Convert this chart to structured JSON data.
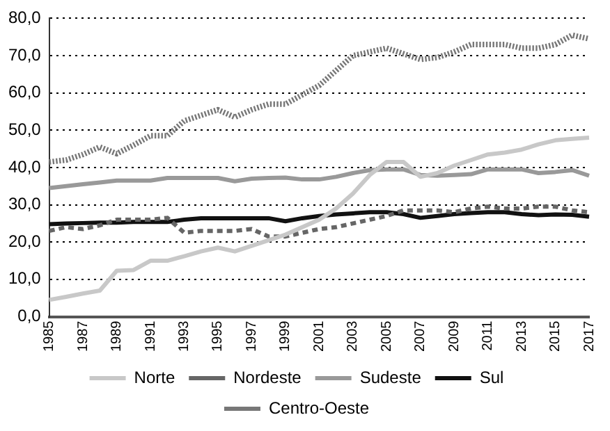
{
  "chart_data": {
    "type": "line",
    "categories": [
      "1985",
      null,
      "1987",
      null,
      "1989",
      null,
      "1991",
      null,
      "1993",
      null,
      "1995",
      null,
      "1997",
      null,
      "1999",
      null,
      "2001",
      null,
      "2003",
      null,
      "2005",
      null,
      "2007",
      null,
      "2009",
      null,
      "2011",
      null,
      "2013",
      null,
      "2015",
      null,
      "2017"
    ],
    "series": [
      {
        "name": "Norte",
        "color": "#c8c8c8",
        "line_style": "solid",
        "values": [
          4.5,
          5.3,
          6.2,
          7,
          12.3,
          12.5,
          15,
          15,
          16.2,
          17.5,
          18.5,
          17.5,
          19,
          20.5,
          22,
          24,
          26,
          29,
          33,
          38,
          41.5,
          41.5,
          37.5,
          38.5,
          40.5,
          42,
          43.5,
          44,
          44.8,
          46.2,
          47.3,
          47.7,
          48
        ]
      },
      {
        "name": "Nordeste",
        "color": "#666666",
        "line_style": "dashed",
        "values": [
          23,
          24,
          23.5,
          24.5,
          26,
          26,
          26,
          26.5,
          22.5,
          23,
          23,
          23,
          23.5,
          21.5,
          21.5,
          22.5,
          23.5,
          24,
          25,
          26,
          27,
          28.5,
          28.5,
          28.5,
          28,
          29,
          29.5,
          29,
          29,
          29.5,
          29.5,
          28.5,
          28
        ]
      },
      {
        "name": "Sudeste",
        "color": "#999999",
        "line_style": "solid",
        "values": [
          34.5,
          35,
          35.5,
          36,
          36.5,
          36.5,
          36.5,
          37.2,
          37.2,
          37.2,
          37.2,
          36.3,
          37,
          37.2,
          37.3,
          36.8,
          36.8,
          37.5,
          38.5,
          39.3,
          39.5,
          39.5,
          38,
          37.8,
          38,
          38.2,
          39.5,
          39.5,
          39.5,
          38.5,
          38.8,
          39.3,
          37.8
        ]
      },
      {
        "name": "Sul",
        "color": "#111111",
        "line_style": "solid",
        "values": [
          24.8,
          25,
          25.1,
          25.2,
          25.2,
          25.4,
          25.4,
          25.4,
          26,
          26.4,
          26.4,
          26.4,
          26.4,
          26.4,
          25.6,
          26.4,
          27,
          27.4,
          27.7,
          28,
          28,
          27.5,
          26.5,
          27,
          27.5,
          27.8,
          28,
          28,
          27.5,
          27.2,
          27.4,
          27.3,
          26.8
        ]
      },
      {
        "name": "Centro-Oeste",
        "color": "#777777",
        "line_style": "dotted",
        "values": [
          41.5,
          42,
          43.5,
          45.5,
          43.7,
          46,
          48.5,
          48.5,
          52.5,
          54,
          55.5,
          53.5,
          55.5,
          57,
          57,
          59.5,
          62,
          66,
          70,
          71,
          72,
          70.5,
          69,
          69.5,
          71,
          73,
          73,
          73,
          72,
          72,
          73,
          75.5,
          74.5
        ]
      }
    ],
    "ylim": [
      0,
      80
    ],
    "yticks": [
      {
        "value": 0,
        "label": "0,0"
      },
      {
        "value": 10,
        "label": "10,0"
      },
      {
        "value": 20,
        "label": "20,0"
      },
      {
        "value": 30,
        "label": "30,0"
      },
      {
        "value": 40,
        "label": "40,0"
      },
      {
        "value": 50,
        "label": "50,0"
      },
      {
        "value": 60,
        "label": "60,0"
      },
      {
        "value": 70,
        "label": "70,0"
      },
      {
        "value": 80,
        "label": "80,0"
      }
    ],
    "grid": "y",
    "legend": "bottom",
    "marker": "none"
  }
}
